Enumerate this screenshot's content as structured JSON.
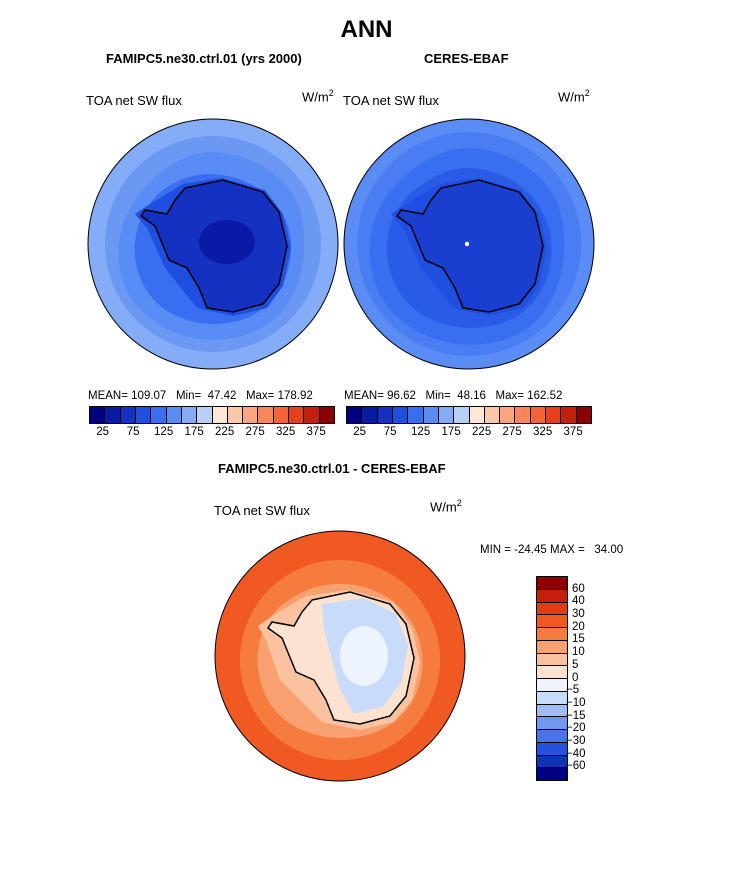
{
  "title": "ANN",
  "panels": [
    {
      "title": "FAMIPC5.ne30.ctrl.01 (yrs 2000)",
      "variable": "TOA net SW flux",
      "units": "W/m",
      "units_sup": "2",
      "stats": {
        "mean_label": "MEAN=",
        "mean": "109.07",
        "min_label": "Min=",
        "min": "47.42",
        "max_label": "Max=",
        "max": "178.92"
      }
    },
    {
      "title": "CERES-EBAF",
      "variable": "TOA net SW flux",
      "units": "W/m",
      "units_sup": "2",
      "stats": {
        "mean_label": "MEAN=",
        "mean": "96.62",
        "min_label": "Min=",
        "min": "48.16",
        "max_label": "Max=",
        "max": "162.52"
      }
    }
  ],
  "shared_colorbar": {
    "colors": [
      "#000080",
      "#0a1aa6",
      "#1531c2",
      "#1f4fe0",
      "#3a6ef0",
      "#5a8cf5",
      "#85acf7",
      "#b8d0f8",
      "#ffe6d6",
      "#fdc7a8",
      "#fba680",
      "#f9855a",
      "#f56438",
      "#e7401c",
      "#c41e0e",
      "#8b0000"
    ],
    "tick_labels": [
      "25",
      "75",
      "125",
      "175",
      "225",
      "275",
      "325",
      "375"
    ]
  },
  "difference": {
    "title": "FAMIPC5.ne30.ctrl.01 - CERES-EBAF",
    "variable": "TOA net SW flux",
    "units": "W/m",
    "units_sup": "2",
    "minmax": "MIN = -24.45 MAX =   34.00",
    "colorbar": {
      "colors_top_to_bottom": [
        "#8b0000",
        "#c41e0e",
        "#e23c17",
        "#f05a22",
        "#f57b3e",
        "#f9a070",
        "#fbc29f",
        "#fde3cf",
        "#eef4fd",
        "#c8dbfa",
        "#9dbdf5",
        "#6f98ee",
        "#4775e6",
        "#2452dd",
        "#0e33b8",
        "#000080"
      ],
      "tick_labels": [
        "60",
        "40",
        "30",
        "20",
        "15",
        "10",
        "5",
        "0",
        "−5",
        "−10",
        "−15",
        "−20",
        "−30",
        "−40",
        "−60"
      ]
    }
  }
}
